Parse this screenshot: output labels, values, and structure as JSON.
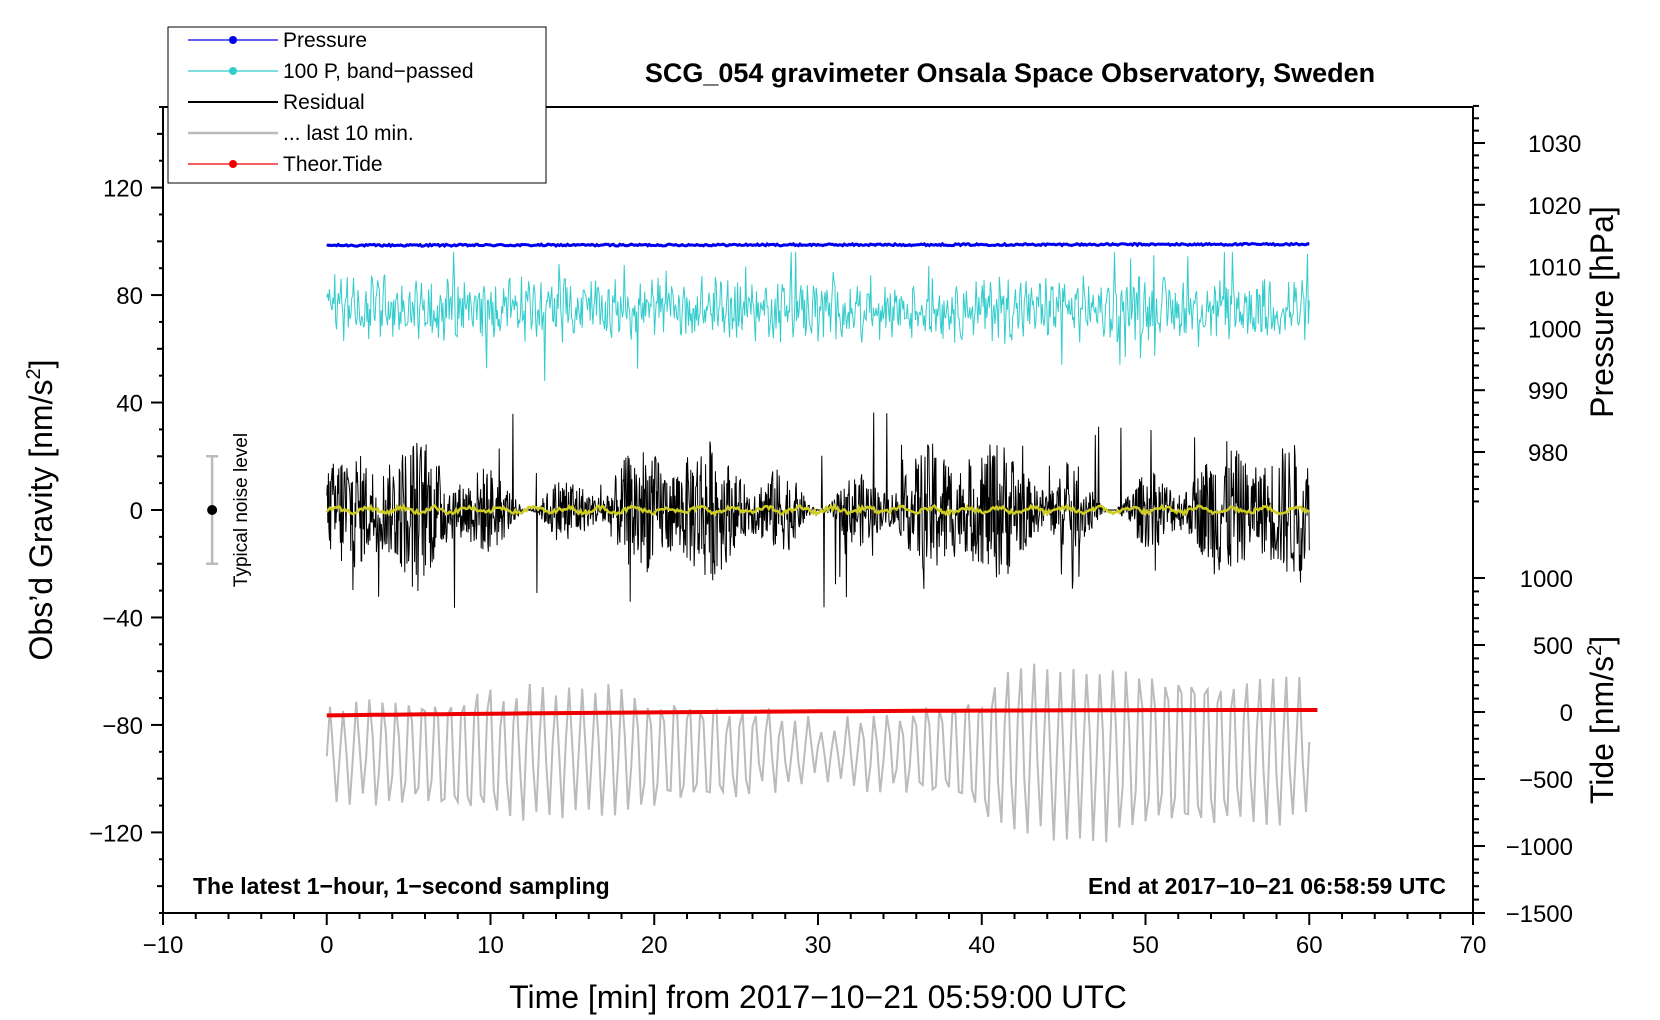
{
  "chart_data": {
    "type": "line",
    "title": "SCG_054 gravimeter Onsala Space Observatory, Sweden",
    "xlabel": "Time [min] from 2017−10−21 05:59:00 UTC",
    "ylabel": "Obs’d Gravity [nm/s",
    "ylabel_sup": "2",
    "ylabel_close": "]",
    "y2label": "Pressure [hPa]",
    "y3label": "Tide [nm/s",
    "y3label_sup": "2",
    "y3label_close": "]",
    "xlim": [
      -10,
      70
    ],
    "ylim": [
      -150,
      150
    ],
    "xticks": [
      -10,
      0,
      10,
      20,
      30,
      40,
      50,
      60,
      70
    ],
    "xtick_labels": [
      "−10",
      "0",
      "10",
      "20",
      "30",
      "40",
      "50",
      "60",
      "70"
    ],
    "yticks": [
      -120,
      -80,
      -40,
      0,
      40,
      80,
      120
    ],
    "ytick_labels": [
      "−120",
      "−80",
      "−40",
      "0",
      "40",
      "80",
      "120"
    ],
    "pressure_axis": {
      "ticks": [
        980,
        990,
        1000,
        1010,
        1020,
        1030
      ],
      "labels": [
        "980",
        "990",
        "1000",
        "1010",
        "1020",
        "1030"
      ]
    },
    "tide_axis": {
      "ticks": [
        -1500,
        -1000,
        -500,
        0,
        500,
        1000
      ],
      "labels": [
        "−1500",
        "−1000",
        "−500",
        "0",
        "500",
        "1000"
      ]
    },
    "legend_position": "top-left",
    "legend": [
      {
        "label": "Pressure",
        "color": "#0000ee",
        "marker": true
      },
      {
        "label": "100 P, band−passed",
        "color": "#33cccc",
        "marker": true
      },
      {
        "label": "Residual",
        "color": "#000000",
        "marker": false
      },
      {
        "label": "... last 10 min.",
        "color": "#bbbbbb",
        "marker": false
      },
      {
        "label": "Theor.Tide",
        "color": "#ee0000",
        "marker": true
      }
    ],
    "annotations": {
      "bottom_left": "The latest 1−hour, 1−second sampling",
      "bottom_right": "End at 2017−10−21 06:58:59 UTC",
      "noise_label": "Typical noise level"
    },
    "noise_bar": {
      "x": -7,
      "center": 0,
      "half_range": 20
    },
    "series": [
      {
        "name": "Pressure",
        "color": "#0000ee",
        "x_range": [
          0,
          60
        ],
        "gravity_level": 98.5,
        "hPa_start": 1012.8,
        "hPa_end": 1013.0
      },
      {
        "name": "100 P, band−passed",
        "color": "#33cccc",
        "x_range": [
          0,
          60
        ],
        "gravity_center": 75,
        "gravity_min": 48,
        "gravity_max": 96
      },
      {
        "name": "Residual",
        "color": "#000000",
        "x_range": [
          0,
          60
        ],
        "gravity_center": 0,
        "gravity_min": -40,
        "gravity_max": 42
      },
      {
        "name": "Residual smoothed",
        "color": "#cccc22",
        "x_range": [
          0,
          60
        ],
        "gravity_center": 0,
        "gravity_min": -2.5,
        "gravity_max": 2.5
      },
      {
        "name": "... last 10 min.",
        "color": "#bbbbbb",
        "x_range": [
          0,
          60
        ],
        "gravity_center": -90,
        "gravity_min": -133,
        "gravity_max": -53
      },
      {
        "name": "Theor.Tide",
        "color": "#ee0000",
        "x_range": [
          0,
          60.5
        ],
        "tide_start": -25,
        "tide_end": 15
      }
    ]
  }
}
